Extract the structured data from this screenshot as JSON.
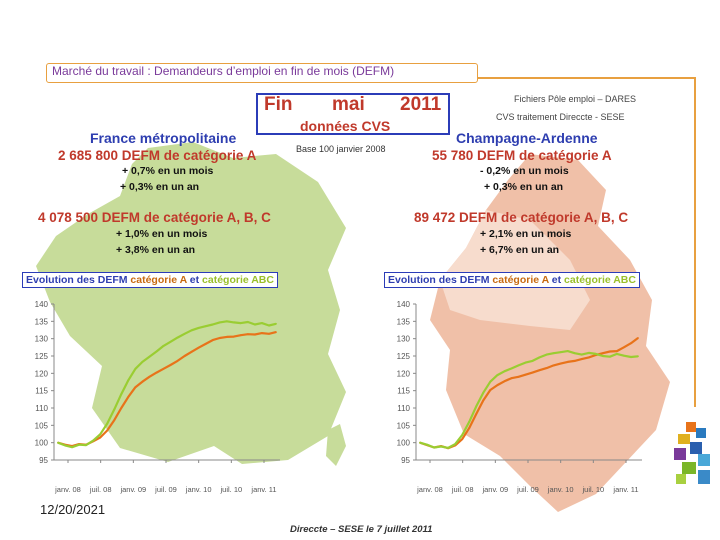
{
  "header": {
    "title": "Marché du travail : Demandeurs d’emploi en fin de mois (DEFM)",
    "source_line1": "Fichiers Pôle emploi – DARES",
    "source_line2": "CVS traitement Direccte - SESE"
  },
  "period": {
    "fin": "Fin",
    "month": "mai",
    "year": "2011",
    "cvs": "données CVS",
    "base": "Base 100 janvier 2008"
  },
  "france": {
    "name": "France métropolitaine",
    "cat_a": "2 685 800  DEFM de catégorie A",
    "cat_a_month": "+ 0,7% en un mois",
    "cat_a_year": "+ 0,3% en un an",
    "cat_abc": "4 078 500  DEFM de catégorie A, B, C",
    "cat_abc_month": "+ 1,0% en un mois",
    "cat_abc_year": "+ 3,8% en un an"
  },
  "champagne": {
    "name": "Champagne-Ardenne",
    "cat_a": "55 780  DEFM de catégorie A",
    "cat_a_month": "- 0,2% en un mois",
    "cat_a_year": "+ 0,3% en un an",
    "cat_abc": "89 472  DEFM de catégorie A, B, C",
    "cat_abc_month": "+ 2,1% en un mois",
    "cat_abc_year": "+ 6,7% en un an"
  },
  "evolution_label": {
    "part1": "Evolution des DEFM ",
    "part2": "catégorie A",
    "part3": " et ",
    "part4": "catégorie ABC"
  },
  "footer": {
    "date": "12/20/2021",
    "source": "Direccte – SESE le 7 juillet 2011"
  },
  "colors": {
    "cat_a": "#e8731a",
    "cat_abc": "#9acd32",
    "france_map": "#c7dc9a",
    "ca_map": "#f0c0a8",
    "ca_map_light": "#f7dccd"
  },
  "chart_data": [
    {
      "type": "line",
      "title": "Evolution des DEFM catégorie A et catégorie ABC",
      "region": "France métropolitaine",
      "ylim": [
        95,
        140
      ],
      "yticks": [
        95,
        100,
        105,
        110,
        115,
        120,
        125,
        130,
        135,
        140
      ],
      "x_tick_labels": [
        "janv. 08",
        "juil. 08",
        "janv. 09",
        "juil. 09",
        "janv. 10",
        "juil. 10",
        "janv. 11"
      ],
      "series": [
        {
          "name": "catégorie A",
          "values": [
            100,
            99.4,
            99,
            99.6,
            99.4,
            100.4,
            101.5,
            103.5,
            106.5,
            110,
            113.2,
            116,
            117.6,
            119,
            120.2,
            121.3,
            122.4,
            123.6,
            125,
            126.2,
            127.4,
            128.5,
            129.6,
            130.2,
            130.5,
            130.6,
            131,
            131.3,
            131.2,
            131.6,
            131.4,
            131.9
          ]
        },
        {
          "name": "catégorie ABC",
          "values": [
            100,
            99.2,
            98.7,
            99.4,
            99.3,
            100.6,
            102.4,
            105.5,
            109.6,
            114,
            118,
            121.3,
            123.3,
            124.8,
            126.3,
            127.9,
            129.1,
            130.3,
            131.4,
            132.4,
            133.1,
            133.6,
            134.1,
            134.7,
            135,
            134.7,
            134.5,
            134.8,
            134.1,
            134.5,
            133.8,
            134.3
          ]
        }
      ]
    },
    {
      "type": "line",
      "title": "Evolution des DEFM catégorie A et catégorie ABC",
      "region": "Champagne-Ardenne",
      "ylim": [
        95,
        140
      ],
      "yticks": [
        95,
        100,
        105,
        110,
        115,
        120,
        125,
        130,
        135,
        140
      ],
      "x_tick_labels": [
        "janv. 08",
        "juil. 08",
        "janv. 09",
        "juil. 09",
        "janv. 10",
        "juil. 10",
        "janv. 11"
      ],
      "series": [
        {
          "name": "catégorie A",
          "values": [
            100,
            99.3,
            98.6,
            99,
            98.4,
            99.2,
            101,
            104.2,
            108.3,
            112.2,
            115.2,
            116.6,
            117.7,
            118.6,
            119,
            119.6,
            120.2,
            120.9,
            121.5,
            122.3,
            122.8,
            123.3,
            123.6,
            124.1,
            124.6,
            125.3,
            125.8,
            126.3,
            126.4,
            127.5,
            128.7,
            130.2
          ]
        },
        {
          "name": "catégorie ABC",
          "values": [
            100,
            99.4,
            98.6,
            98.9,
            98.5,
            99.6,
            102.2,
            106,
            110.5,
            114.4,
            117.6,
            119.5,
            120.6,
            121.4,
            122.3,
            123.1,
            123.6,
            124.6,
            125.4,
            125.8,
            126.1,
            126.4,
            125.8,
            125.4,
            125.9,
            125.6,
            125,
            124.8,
            125.6,
            125.1,
            124.7,
            124.9
          ]
        }
      ]
    }
  ]
}
